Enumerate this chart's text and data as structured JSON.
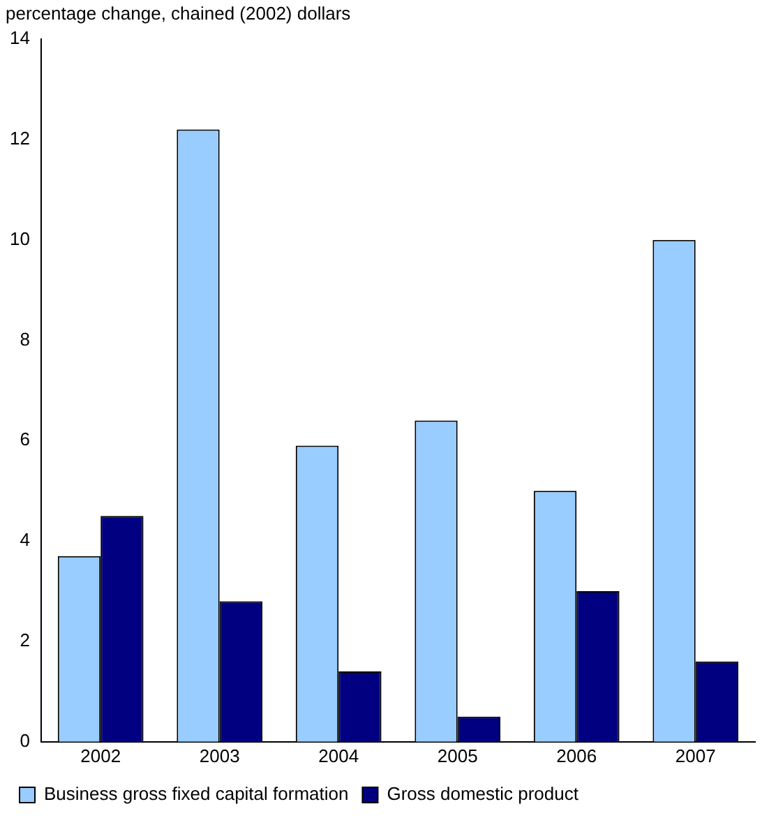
{
  "chart_data": {
    "type": "bar",
    "ylabel": "percentage change, chained (2002) dollars",
    "categories": [
      "2002",
      "2003",
      "2004",
      "2005",
      "2006",
      "2007"
    ],
    "series": [
      {
        "name": "Business gross fixed capital formation",
        "color": "#99ccff",
        "values": [
          3.7,
          12.2,
          5.9,
          6.4,
          5.0,
          10.0
        ]
      },
      {
        "name": "Gross domestic product",
        "color": "#000080",
        "values": [
          4.5,
          2.8,
          1.4,
          0.5,
          3.0,
          1.6
        ]
      }
    ],
    "ylim": [
      0,
      14
    ],
    "yticks": [
      0,
      2,
      4,
      6,
      8,
      10,
      12,
      14
    ],
    "grid": false,
    "legend": "bottom left"
  }
}
